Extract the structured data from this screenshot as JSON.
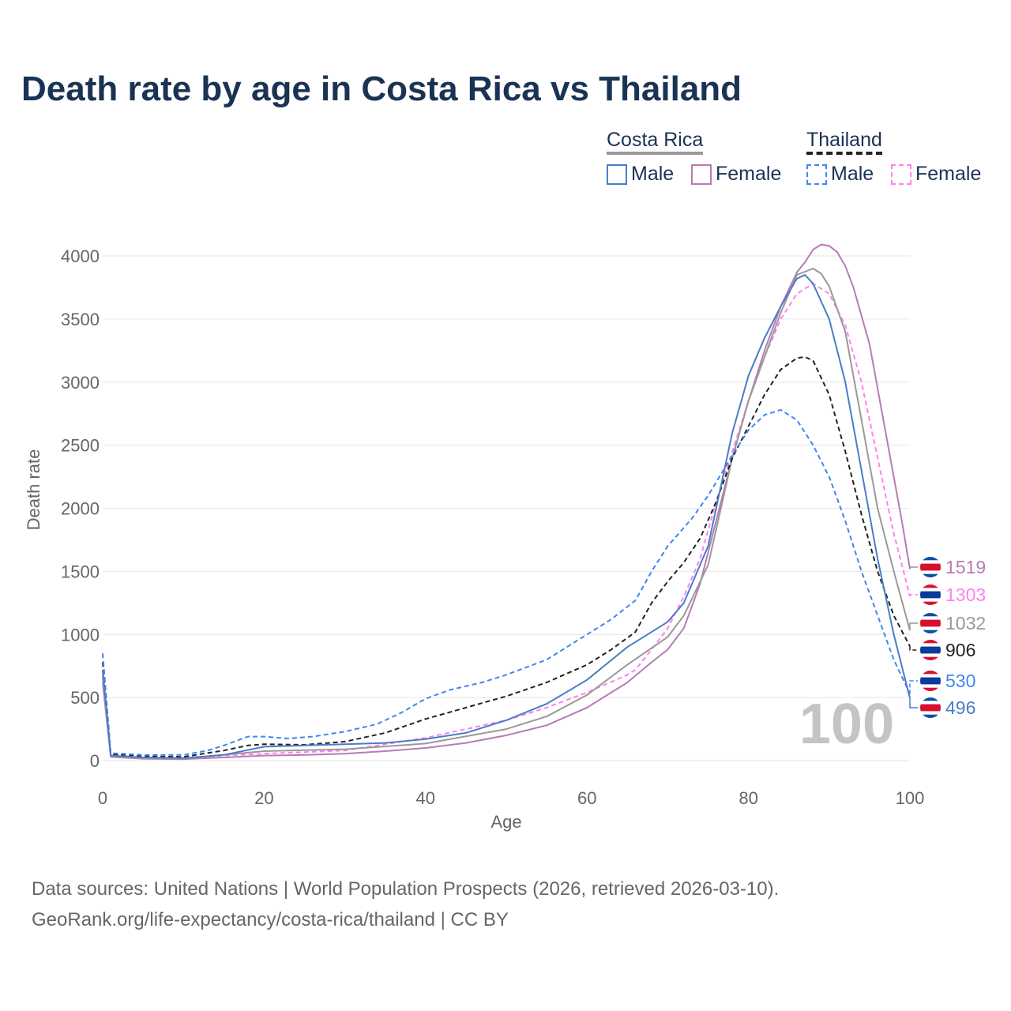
{
  "title": "Death rate by age in Costa Rica vs Thailand",
  "legend": {
    "groups": [
      {
        "name": "Costa Rica",
        "items": [
          "Male",
          "Female"
        ]
      },
      {
        "name": "Thailand",
        "items": [
          "Male",
          "Female"
        ]
      }
    ]
  },
  "source": [
    "Data sources: United Nations | World Population Prospects (2026, retrieved 2026-03-10).",
    "GeoRank.org/life-expectancy/costa-rica/thailand | CC BY"
  ],
  "chart_data": {
    "type": "line",
    "xlabel": "Age",
    "ylabel": "Death rate",
    "xlim": [
      0,
      100
    ],
    "ylim": [
      0,
      4000
    ],
    "xticks": [
      "0",
      "20",
      "40",
      "60",
      "80",
      "100"
    ],
    "yticks": [
      "0",
      "500",
      "1000",
      "1500",
      "2000",
      "2500",
      "3000",
      "3500",
      "4000"
    ],
    "watermark": "100",
    "series": [
      {
        "name": "Costa Rica Female",
        "country": "cr",
        "color": "#b77bb4",
        "dash": false,
        "end_label": "1519",
        "points": [
          [
            0,
            620
          ],
          [
            1,
            30
          ],
          [
            5,
            15
          ],
          [
            10,
            12
          ],
          [
            15,
            25
          ],
          [
            20,
            40
          ],
          [
            25,
            45
          ],
          [
            30,
            55
          ],
          [
            35,
            75
          ],
          [
            40,
            100
          ],
          [
            45,
            140
          ],
          [
            50,
            200
          ],
          [
            55,
            280
          ],
          [
            60,
            420
          ],
          [
            65,
            620
          ],
          [
            68,
            780
          ],
          [
            70,
            880
          ],
          [
            72,
            1050
          ],
          [
            74,
            1400
          ],
          [
            76,
            1900
          ],
          [
            78,
            2400
          ],
          [
            80,
            2850
          ],
          [
            82,
            3250
          ],
          [
            84,
            3600
          ],
          [
            86,
            3870
          ],
          [
            87,
            3950
          ],
          [
            88,
            4050
          ],
          [
            89,
            4090
          ],
          [
            90,
            4080
          ],
          [
            91,
            4030
          ],
          [
            92,
            3920
          ],
          [
            93,
            3750
          ],
          [
            95,
            3300
          ],
          [
            97,
            2600
          ],
          [
            99,
            1900
          ],
          [
            100,
            1519
          ]
        ]
      },
      {
        "name": "Thailand Female",
        "country": "th",
        "color": "#ff80ee",
        "dash": true,
        "end_label": "1303",
        "points": [
          [
            0,
            700
          ],
          [
            1,
            45
          ],
          [
            5,
            25
          ],
          [
            10,
            20
          ],
          [
            15,
            40
          ],
          [
            20,
            55
          ],
          [
            30,
            80
          ],
          [
            40,
            180
          ],
          [
            50,
            320
          ],
          [
            55,
            420
          ],
          [
            60,
            540
          ],
          [
            65,
            680
          ],
          [
            66,
            720
          ],
          [
            68,
            880
          ],
          [
            70,
            1050
          ],
          [
            72,
            1300
          ],
          [
            74,
            1600
          ],
          [
            76,
            2050
          ],
          [
            78,
            2450
          ],
          [
            80,
            2850
          ],
          [
            82,
            3200
          ],
          [
            84,
            3500
          ],
          [
            86,
            3700
          ],
          [
            88,
            3780
          ],
          [
            90,
            3700
          ],
          [
            92,
            3450
          ],
          [
            94,
            3000
          ],
          [
            96,
            2400
          ],
          [
            98,
            1800
          ],
          [
            100,
            1303
          ]
        ]
      },
      {
        "name": "Costa Rica Total",
        "country": "cr",
        "color": "#999999",
        "dash": false,
        "end_label": "1032",
        "points": [
          [
            0,
            670
          ],
          [
            1,
            35
          ],
          [
            5,
            20
          ],
          [
            10,
            16
          ],
          [
            20,
            75
          ],
          [
            30,
            90
          ],
          [
            40,
            135
          ],
          [
            50,
            250
          ],
          [
            55,
            350
          ],
          [
            60,
            520
          ],
          [
            65,
            760
          ],
          [
            70,
            980
          ],
          [
            72,
            1150
          ],
          [
            75,
            1550
          ],
          [
            78,
            2400
          ],
          [
            80,
            2850
          ],
          [
            82,
            3200
          ],
          [
            84,
            3550
          ],
          [
            86,
            3850
          ],
          [
            88,
            3900
          ],
          [
            89,
            3860
          ],
          [
            90,
            3760
          ],
          [
            92,
            3400
          ],
          [
            94,
            2700
          ],
          [
            96,
            2000
          ],
          [
            98,
            1500
          ],
          [
            100,
            1032
          ]
        ]
      },
      {
        "name": "Thailand Total",
        "country": "th",
        "color": "#222222",
        "dash": true,
        "end_label": "906",
        "points": [
          [
            0,
            780
          ],
          [
            1,
            50
          ],
          [
            5,
            35
          ],
          [
            10,
            30
          ],
          [
            15,
            80
          ],
          [
            18,
            120
          ],
          [
            20,
            130
          ],
          [
            25,
            125
          ],
          [
            30,
            150
          ],
          [
            35,
            220
          ],
          [
            40,
            330
          ],
          [
            45,
            420
          ],
          [
            50,
            510
          ],
          [
            55,
            620
          ],
          [
            60,
            760
          ],
          [
            63,
            880
          ],
          [
            66,
            1020
          ],
          [
            68,
            1250
          ],
          [
            70,
            1420
          ],
          [
            72,
            1570
          ],
          [
            74,
            1760
          ],
          [
            76,
            2050
          ],
          [
            78,
            2400
          ],
          [
            80,
            2650
          ],
          [
            82,
            2900
          ],
          [
            84,
            3100
          ],
          [
            86,
            3190
          ],
          [
            87,
            3200
          ],
          [
            88,
            3170
          ],
          [
            90,
            2900
          ],
          [
            92,
            2450
          ],
          [
            94,
            1950
          ],
          [
            96,
            1500
          ],
          [
            98,
            1150
          ],
          [
            100,
            906
          ]
        ]
      },
      {
        "name": "Thailand Male",
        "country": "th",
        "color": "#3e87f0",
        "dash": true,
        "end_label": "530",
        "points": [
          [
            0,
            850
          ],
          [
            1,
            60
          ],
          [
            5,
            45
          ],
          [
            10,
            45
          ],
          [
            13,
            80
          ],
          [
            15,
            120
          ],
          [
            18,
            190
          ],
          [
            20,
            190
          ],
          [
            23,
            175
          ],
          [
            26,
            190
          ],
          [
            30,
            230
          ],
          [
            34,
            290
          ],
          [
            37,
            380
          ],
          [
            40,
            490
          ],
          [
            43,
            560
          ],
          [
            47,
            620
          ],
          [
            50,
            680
          ],
          [
            55,
            800
          ],
          [
            60,
            1000
          ],
          [
            63,
            1120
          ],
          [
            65,
            1220
          ],
          [
            66,
            1270
          ],
          [
            68,
            1500
          ],
          [
            70,
            1700
          ],
          [
            73,
            1920
          ],
          [
            75,
            2100
          ],
          [
            78,
            2420
          ],
          [
            80,
            2620
          ],
          [
            82,
            2740
          ],
          [
            84,
            2780
          ],
          [
            86,
            2700
          ],
          [
            88,
            2500
          ],
          [
            90,
            2250
          ],
          [
            92,
            1900
          ],
          [
            94,
            1500
          ],
          [
            96,
            1150
          ],
          [
            98,
            800
          ],
          [
            100,
            530
          ]
        ]
      },
      {
        "name": "Costa Rica Male",
        "country": "cr",
        "color": "#4a7cc9",
        "dash": false,
        "end_label": "496",
        "points": [
          [
            0,
            720
          ],
          [
            1,
            40
          ],
          [
            5,
            25
          ],
          [
            10,
            20
          ],
          [
            15,
            45
          ],
          [
            20,
            110
          ],
          [
            25,
            120
          ],
          [
            30,
            130
          ],
          [
            35,
            140
          ],
          [
            40,
            170
          ],
          [
            45,
            220
          ],
          [
            50,
            320
          ],
          [
            55,
            450
          ],
          [
            60,
            640
          ],
          [
            65,
            900
          ],
          [
            70,
            1100
          ],
          [
            72,
            1250
          ],
          [
            75,
            1700
          ],
          [
            78,
            2600
          ],
          [
            80,
            3050
          ],
          [
            82,
            3350
          ],
          [
            84,
            3600
          ],
          [
            86,
            3820
          ],
          [
            87,
            3850
          ],
          [
            88,
            3780
          ],
          [
            90,
            3500
          ],
          [
            92,
            3000
          ],
          [
            94,
            2300
          ],
          [
            96,
            1600
          ],
          [
            98,
            1000
          ],
          [
            100,
            496
          ]
        ]
      }
    ]
  }
}
